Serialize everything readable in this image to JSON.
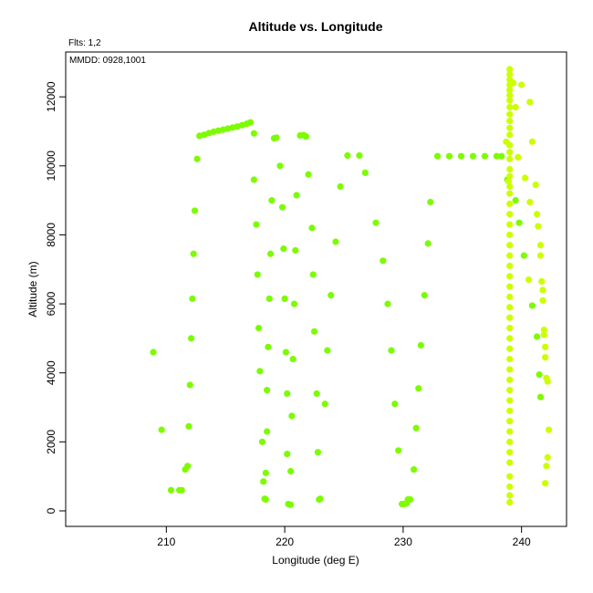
{
  "chart_data": {
    "type": "scatter",
    "title": "Altitude vs. Longitude",
    "xlabel": "Longitude (deg E)",
    "ylabel": "Altitude (m)",
    "annotations": [
      "Flts: 1,2",
      "MMDD: 0928,1001"
    ],
    "xlim": [
      201.5,
      243.8
    ],
    "ylim": [
      -450,
      13300
    ],
    "xticks": [
      210,
      220,
      230,
      240
    ],
    "yticks": [
      0,
      2000,
      4000,
      6000,
      8000,
      10000,
      12000
    ],
    "grid": false,
    "series": [
      {
        "color": "#7cfc00",
        "points": [
          [
            208.9,
            4600
          ],
          [
            209.6,
            2350
          ],
          [
            210.4,
            600
          ],
          [
            211.1,
            600
          ],
          [
            211.3,
            600
          ],
          [
            211.6,
            1200
          ],
          [
            211.8,
            1300
          ],
          [
            211.9,
            2450
          ],
          [
            212.0,
            3650
          ],
          [
            212.1,
            5000
          ],
          [
            212.2,
            6150
          ],
          [
            212.3,
            7450
          ],
          [
            212.4,
            8700
          ],
          [
            212.6,
            10200
          ],
          [
            212.8,
            10870
          ],
          [
            213.2,
            10900
          ],
          [
            213.6,
            10950
          ],
          [
            214.0,
            10990
          ],
          [
            214.4,
            11020
          ],
          [
            214.8,
            11050
          ],
          [
            215.2,
            11080
          ],
          [
            215.6,
            11110
          ],
          [
            216.0,
            11140
          ],
          [
            216.4,
            11180
          ],
          [
            216.8,
            11220
          ],
          [
            217.1,
            11260
          ],
          [
            217.4,
            10940
          ],
          [
            217.4,
            9600
          ],
          [
            217.6,
            8300
          ],
          [
            217.7,
            6850
          ],
          [
            217.8,
            5300
          ],
          [
            217.9,
            4050
          ],
          [
            218.1,
            2000
          ],
          [
            218.2,
            850
          ],
          [
            218.3,
            350
          ],
          [
            218.4,
            330
          ],
          [
            218.4,
            1100
          ],
          [
            218.5,
            2300
          ],
          [
            218.5,
            3500
          ],
          [
            218.6,
            4750
          ],
          [
            218.7,
            6150
          ],
          [
            218.8,
            7450
          ],
          [
            218.9,
            9000
          ],
          [
            219.1,
            10800
          ],
          [
            219.3,
            10820
          ],
          [
            219.6,
            10000
          ],
          [
            219.8,
            8800
          ],
          [
            219.9,
            7600
          ],
          [
            220.0,
            6150
          ],
          [
            220.1,
            4600
          ],
          [
            220.2,
            3400
          ],
          [
            220.2,
            1650
          ],
          [
            220.3,
            200
          ],
          [
            220.5,
            180
          ],
          [
            220.5,
            1150
          ],
          [
            220.6,
            2750
          ],
          [
            220.7,
            4400
          ],
          [
            220.8,
            6000
          ],
          [
            220.9,
            7550
          ],
          [
            221.0,
            9150
          ],
          [
            221.3,
            10880
          ],
          [
            221.6,
            10890
          ],
          [
            221.8,
            10850
          ],
          [
            222.0,
            9750
          ],
          [
            222.3,
            8200
          ],
          [
            222.4,
            6850
          ],
          [
            222.5,
            5200
          ],
          [
            222.7,
            3400
          ],
          [
            222.8,
            1700
          ],
          [
            222.9,
            330
          ],
          [
            223.0,
            350
          ],
          [
            223.4,
            3100
          ],
          [
            223.6,
            4650
          ],
          [
            223.9,
            6250
          ],
          [
            224.3,
            7800
          ],
          [
            224.7,
            9400
          ],
          [
            225.3,
            10300
          ],
          [
            226.3,
            10300
          ],
          [
            226.8,
            9800
          ],
          [
            227.7,
            8350
          ],
          [
            228.3,
            7250
          ],
          [
            228.7,
            6000
          ],
          [
            229.0,
            4650
          ],
          [
            229.3,
            3100
          ],
          [
            229.6,
            1750
          ],
          [
            229.9,
            200
          ],
          [
            230.1,
            200
          ],
          [
            230.3,
            220
          ],
          [
            230.4,
            330
          ],
          [
            230.6,
            330
          ],
          [
            230.9,
            1200
          ],
          [
            231.1,
            2400
          ],
          [
            231.3,
            3550
          ],
          [
            231.5,
            4800
          ],
          [
            231.8,
            6250
          ],
          [
            232.1,
            7750
          ],
          [
            232.3,
            8950
          ],
          [
            232.9,
            10280
          ],
          [
            233.9,
            10280
          ],
          [
            234.9,
            10280
          ],
          [
            235.9,
            10280
          ],
          [
            236.9,
            10280
          ],
          [
            237.9,
            10280
          ],
          [
            238.3,
            10280
          ],
          [
            238.8,
            9600
          ],
          [
            239.5,
            9000
          ],
          [
            239.8,
            8350
          ],
          [
            240.2,
            7400
          ],
          [
            240.9,
            5950
          ],
          [
            241.3,
            5050
          ],
          [
            241.5,
            3950
          ],
          [
            241.6,
            3300
          ]
        ]
      },
      {
        "color": "#ccff00",
        "points": [
          [
            238.7,
            10700
          ],
          [
            238.9,
            9550
          ],
          [
            239.0,
            12800
          ],
          [
            239.0,
            12650
          ],
          [
            239.0,
            12500
          ],
          [
            239.0,
            12350
          ],
          [
            239.0,
            12200
          ],
          [
            239.0,
            12050
          ],
          [
            239.0,
            11900
          ],
          [
            239.0,
            11700
          ],
          [
            239.0,
            11500
          ],
          [
            239.0,
            11300
          ],
          [
            239.0,
            11100
          ],
          [
            239.0,
            10900
          ],
          [
            239.0,
            10600
          ],
          [
            239.0,
            10400
          ],
          [
            239.0,
            10200
          ],
          [
            239.0,
            9900
          ],
          [
            239.0,
            9700
          ],
          [
            239.0,
            9400
          ],
          [
            239.0,
            9200
          ],
          [
            239.0,
            8900
          ],
          [
            239.0,
            8600
          ],
          [
            239.0,
            8300
          ],
          [
            239.0,
            8000
          ],
          [
            239.0,
            7700
          ],
          [
            239.0,
            7400
          ],
          [
            239.0,
            7100
          ],
          [
            239.0,
            6800
          ],
          [
            239.0,
            6500
          ],
          [
            239.0,
            6200
          ],
          [
            239.0,
            5900
          ],
          [
            239.0,
            5600
          ],
          [
            239.0,
            5300
          ],
          [
            239.0,
            5000
          ],
          [
            239.0,
            4700
          ],
          [
            239.0,
            4400
          ],
          [
            239.0,
            4100
          ],
          [
            239.0,
            3800
          ],
          [
            239.0,
            3500
          ],
          [
            239.0,
            3200
          ],
          [
            239.0,
            2900
          ],
          [
            239.0,
            2600
          ],
          [
            239.0,
            2300
          ],
          [
            239.0,
            2000
          ],
          [
            239.0,
            1700
          ],
          [
            239.0,
            1400
          ],
          [
            239.0,
            1000
          ],
          [
            239.0,
            700
          ],
          [
            239.0,
            450
          ],
          [
            239.0,
            250
          ],
          [
            239.3,
            12400
          ],
          [
            239.5,
            11700
          ],
          [
            239.7,
            10250
          ],
          [
            240.0,
            12350
          ],
          [
            240.3,
            9650
          ],
          [
            240.7,
            8950
          ],
          [
            240.7,
            11850
          ],
          [
            240.9,
            10700
          ],
          [
            241.2,
            9450
          ],
          [
            241.3,
            8600
          ],
          [
            241.4,
            8250
          ],
          [
            241.6,
            7700
          ],
          [
            241.6,
            7400
          ],
          [
            241.7,
            6650
          ],
          [
            241.8,
            6400
          ],
          [
            241.8,
            6100
          ],
          [
            241.9,
            5250
          ],
          [
            241.9,
            5100
          ],
          [
            242.0,
            4750
          ],
          [
            242.0,
            4450
          ],
          [
            242.1,
            3850
          ],
          [
            242.2,
            3750
          ],
          [
            242.2,
            1550
          ],
          [
            242.3,
            2350
          ],
          [
            242.1,
            1300
          ],
          [
            242.0,
            800
          ],
          [
            240.6,
            6700
          ]
        ]
      }
    ]
  }
}
